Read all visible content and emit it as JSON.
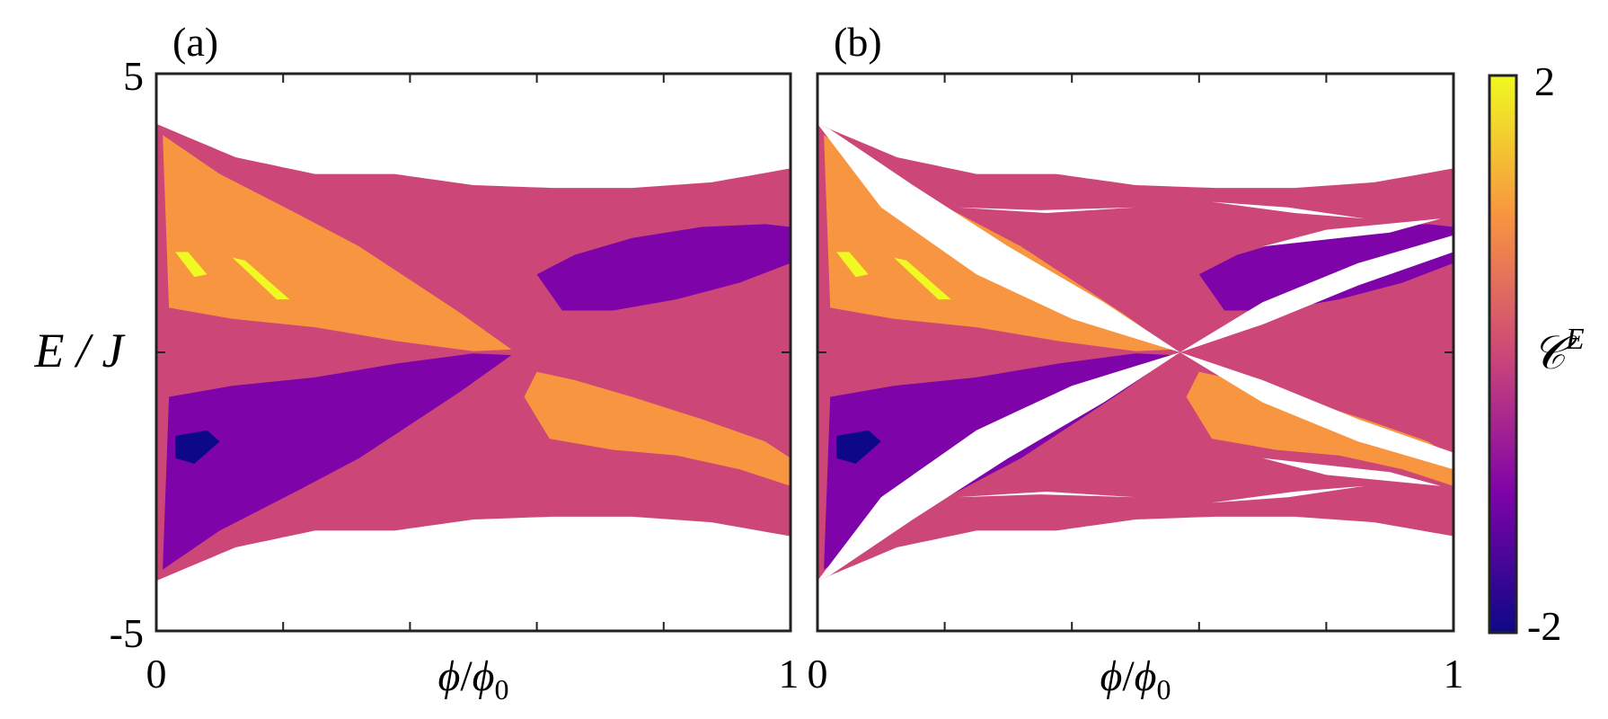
{
  "chart_data": {
    "type": "heatmap",
    "panels": [
      {
        "label": "(a)",
        "style": "smooth",
        "xlabel_symbol": "ϕ",
        "xlabel_sep": "/",
        "xlabel_sub_symbol": "ϕ",
        "xlabel_sub": "0",
        "xticks": [
          "0",
          "1"
        ],
        "xlim": [
          0,
          1
        ]
      },
      {
        "label": "(b)",
        "style": "fractal",
        "xlabel_symbol": "ϕ",
        "xlabel_sep": "/",
        "xlabel_sub_symbol": "ϕ",
        "xlabel_sub": "0",
        "xticks": [
          "0",
          "1"
        ],
        "xlim": [
          0,
          1
        ]
      }
    ],
    "ylabel": "E / J",
    "ylim": [
      -5,
      5
    ],
    "yticks": [
      "5",
      "-5"
    ],
    "colorbar": {
      "label_symbol": "𝒞",
      "label_sup": "E",
      "range": [
        -2,
        2
      ],
      "ticks": [
        "2",
        "-2"
      ],
      "colors": [
        "#0d0887",
        "#7e03a8",
        "#cc4778",
        "#f89540",
        "#f0f921"
      ]
    },
    "band_edges": {
      "phi": [
        0,
        0.125,
        0.25,
        0.375,
        0.5,
        0.625,
        0.75,
        0.875,
        1
      ],
      "upper_E": [
        4.1,
        3.5,
        3.2,
        3.2,
        3.0,
        2.95,
        2.95,
        3.05,
        3.3
      ],
      "lower_E": [
        -4.1,
        -3.5,
        -3.2,
        -3.2,
        -3.0,
        -2.95,
        -2.95,
        -3.05,
        -3.3
      ]
    },
    "regions": [
      {
        "value": 1,
        "center_phi": 0.22,
        "center_E": 2.1,
        "desc": "upper-left positive"
      },
      {
        "value": -1,
        "center_phi": 0.22,
        "center_E": -2.1,
        "desc": "lower-left negative"
      },
      {
        "value": -1,
        "center_phi": 0.78,
        "center_E": 1.7,
        "desc": "upper-right negative"
      },
      {
        "value": 1,
        "center_phi": 0.78,
        "center_E": -1.7,
        "desc": "lower-right positive"
      },
      {
        "value": 2,
        "center_phi": 0.08,
        "center_E": 1.8,
        "desc": "upper-left max"
      },
      {
        "value": -2,
        "center_phi": 0.06,
        "center_E": -1.8,
        "desc": "lower-left min"
      },
      {
        "value": 0,
        "center_phi": 0.5,
        "center_E": 0,
        "desc": "background"
      }
    ]
  }
}
